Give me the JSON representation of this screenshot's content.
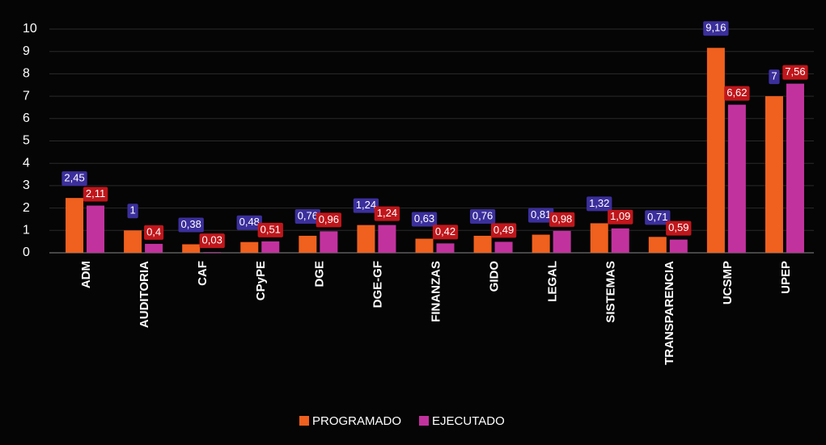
{
  "chart_data": {
    "type": "bar",
    "categories": [
      "ADM",
      "AUDITORIA",
      "CAF",
      "CPyPE",
      "DGE",
      "DGE-GF",
      "FINANZAS",
      "GIDO",
      "LEGAL",
      "SISTEMAS",
      "TRANSPARENCIA",
      "UCSMP",
      "UPEP"
    ],
    "series": [
      {
        "name": "PROGRAMADO",
        "color": "#f0601e",
        "label_color": "#3b2f9c",
        "values": [
          2.45,
          1,
          0.38,
          0.48,
          0.76,
          1.24,
          0.63,
          0.76,
          0.81,
          1.32,
          0.71,
          9.16,
          7
        ],
        "value_labels": [
          "2,45",
          "1",
          "0,38",
          "0,48",
          "0,76",
          "1,24",
          "0,63",
          "0,76",
          "0,81",
          "1,32",
          "0,71",
          "9,16",
          "7"
        ]
      },
      {
        "name": "EJECUTADO",
        "color": "#c2329e",
        "label_color": "#c0161b",
        "values": [
          2.11,
          0.4,
          0.03,
          0.51,
          0.96,
          1.24,
          0.42,
          0.49,
          0.98,
          1.09,
          0.59,
          6.62,
          7.56
        ],
        "value_labels": [
          "2,11",
          "0,4",
          "0,03",
          "0,51",
          "0,96",
          "1,24",
          "0,42",
          "0,49",
          "0,98",
          "1,09",
          "0,59",
          "6,62",
          "7,56"
        ]
      }
    ],
    "ylim": [
      0,
      10
    ],
    "yticks": [
      0,
      1,
      2,
      3,
      4,
      5,
      6,
      7,
      8,
      9,
      10
    ],
    "grid": true,
    "legend": "bottom"
  }
}
